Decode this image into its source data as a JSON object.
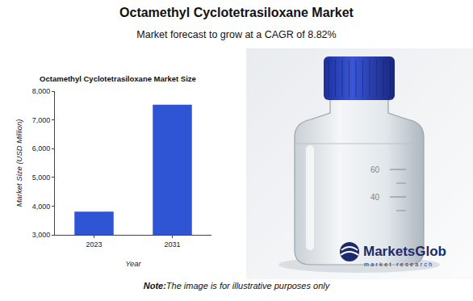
{
  "title": "Octamethyl Cyclotetrasiloxane Market",
  "subtitle": "Market forecast to grow at a CAGR of 8.82%",
  "chart_data": {
    "type": "bar",
    "title": "Octamethyl Cyclotetrasiloxane Market Size",
    "x_label": "Year",
    "y_label": "Market Size (USD Million)",
    "categories": [
      "2023",
      "2031"
    ],
    "values": [
      3810,
      7530
    ],
    "color": "#2f55d4",
    "ylim": [
      3000,
      8000
    ],
    "yticks": [
      {
        "value": 3000,
        "label": "3,000"
      },
      {
        "value": 4000,
        "label": "4,000"
      },
      {
        "value": 5000,
        "label": "5,000"
      },
      {
        "value": 6000,
        "label": "6,000"
      },
      {
        "value": 7000,
        "label": "7,000"
      },
      {
        "value": 8000,
        "label": "8,000"
      }
    ],
    "grid": false
  },
  "image": {
    "scale_marks": [
      60,
      40
    ],
    "logo": "MarketsGlob",
    "logo_tagline": "market research"
  },
  "note": {
    "label": "Note:",
    "text": "The image is for illustrative purposes only"
  }
}
